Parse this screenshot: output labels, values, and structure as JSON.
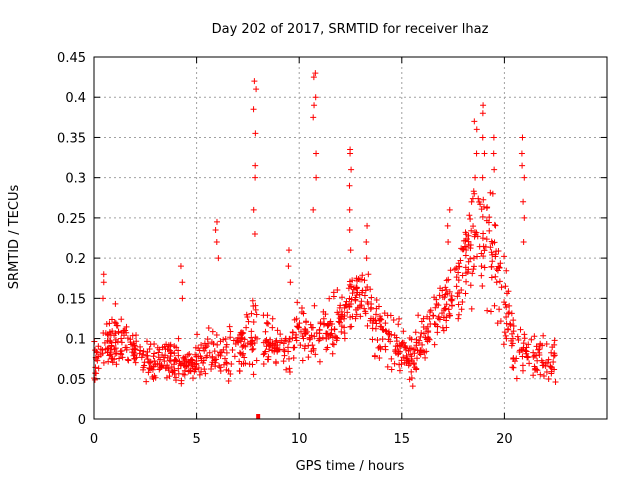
{
  "chart_data": {
    "type": "scatter",
    "title": "Day 202 of 2017, SRMTID for receiver lhaz",
    "xlabel": "GPS time / hours",
    "ylabel": "SRMTID / TECUs",
    "xlim": [
      0,
      25
    ],
    "ylim": [
      0,
      0.45
    ],
    "x_ticks": [
      "0",
      "5",
      "10",
      "15",
      "20"
    ],
    "y_ticks": [
      "0",
      "0.05",
      "0.1",
      "0.15",
      "0.2",
      "0.25",
      "0.3",
      "0.35",
      "0.4",
      "0.45"
    ],
    "grid": true,
    "marker": "+",
    "marker_color": "#ff0000",
    "series": [
      {
        "name": "SRMTID",
        "trend": {
          "x": [
            0.0,
            0.5,
            1.0,
            1.5,
            2.0,
            2.5,
            3.0,
            3.5,
            4.0,
            4.5,
            5.0,
            5.5,
            6.0,
            6.5,
            7.0,
            7.5,
            8.0,
            8.5,
            9.0,
            9.5,
            10.0,
            10.5,
            11.0,
            11.5,
            12.0,
            12.5,
            13.0,
            13.5,
            14.0,
            14.5,
            15.0,
            15.5,
            16.0,
            16.5,
            17.0,
            17.5,
            18.0,
            18.5,
            19.0,
            19.5,
            20.0,
            20.5,
            21.0,
            21.5,
            22.0,
            22.5
          ],
          "y": [
            0.07,
            0.09,
            0.1,
            0.1,
            0.085,
            0.075,
            0.07,
            0.075,
            0.065,
            0.07,
            0.075,
            0.08,
            0.085,
            0.08,
            0.09,
            0.1,
            0.11,
            0.095,
            0.08,
            0.09,
            0.11,
            0.1,
            0.105,
            0.115,
            0.12,
            0.15,
            0.16,
            0.13,
            0.11,
            0.095,
            0.085,
            0.075,
            0.095,
            0.115,
            0.14,
            0.16,
            0.19,
            0.22,
            0.24,
            0.2,
            0.14,
            0.09,
            0.08,
            0.07,
            0.075,
            0.075
          ],
          "spread": [
            0.025,
            0.03,
            0.03,
            0.03,
            0.025,
            0.025,
            0.025,
            0.025,
            0.025,
            0.025,
            0.025,
            0.03,
            0.03,
            0.03,
            0.03,
            0.035,
            0.035,
            0.03,
            0.03,
            0.03,
            0.03,
            0.03,
            0.03,
            0.03,
            0.03,
            0.035,
            0.035,
            0.035,
            0.03,
            0.03,
            0.03,
            0.03,
            0.03,
            0.035,
            0.04,
            0.045,
            0.05,
            0.06,
            0.07,
            0.06,
            0.05,
            0.035,
            0.03,
            0.03,
            0.025,
            0.025
          ]
        },
        "spikes": [
          {
            "x": 0.5,
            "y": [
              0.15,
              0.17,
              0.18
            ]
          },
          {
            "x": 4.3,
            "y": [
              0.15,
              0.17,
              0.19
            ]
          },
          {
            "x": 6.0,
            "y": [
              0.2,
              0.22,
              0.235,
              0.245
            ]
          },
          {
            "x": 7.85,
            "y": [
              0.23,
              0.26,
              0.3,
              0.315,
              0.355,
              0.385,
              0.41,
              0.42
            ]
          },
          {
            "x": 9.5,
            "y": [
              0.17,
              0.19,
              0.21
            ]
          },
          {
            "x": 10.75,
            "y": [
              0.26,
              0.3,
              0.33,
              0.375,
              0.39,
              0.4,
              0.425,
              0.43
            ]
          },
          {
            "x": 12.5,
            "y": [
              0.21,
              0.235,
              0.26,
              0.29,
              0.31,
              0.33,
              0.335
            ]
          },
          {
            "x": 13.3,
            "y": [
              0.18,
              0.2,
              0.22,
              0.24
            ]
          },
          {
            "x": 17.3,
            "y": [
              0.22,
              0.24,
              0.26
            ]
          },
          {
            "x": 18.6,
            "y": [
              0.28,
              0.3,
              0.33,
              0.36,
              0.37
            ]
          },
          {
            "x": 19.0,
            "y": [
              0.3,
              0.33,
              0.35,
              0.38,
              0.39
            ]
          },
          {
            "x": 19.5,
            "y": [
              0.28,
              0.31,
              0.33,
              0.35
            ]
          },
          {
            "x": 20.9,
            "y": [
              0.22,
              0.25,
              0.27,
              0.3,
              0.315,
              0.33,
              0.35
            ]
          }
        ]
      }
    ],
    "data_gap_marker": {
      "x": 8.0,
      "y": 0.0
    }
  }
}
